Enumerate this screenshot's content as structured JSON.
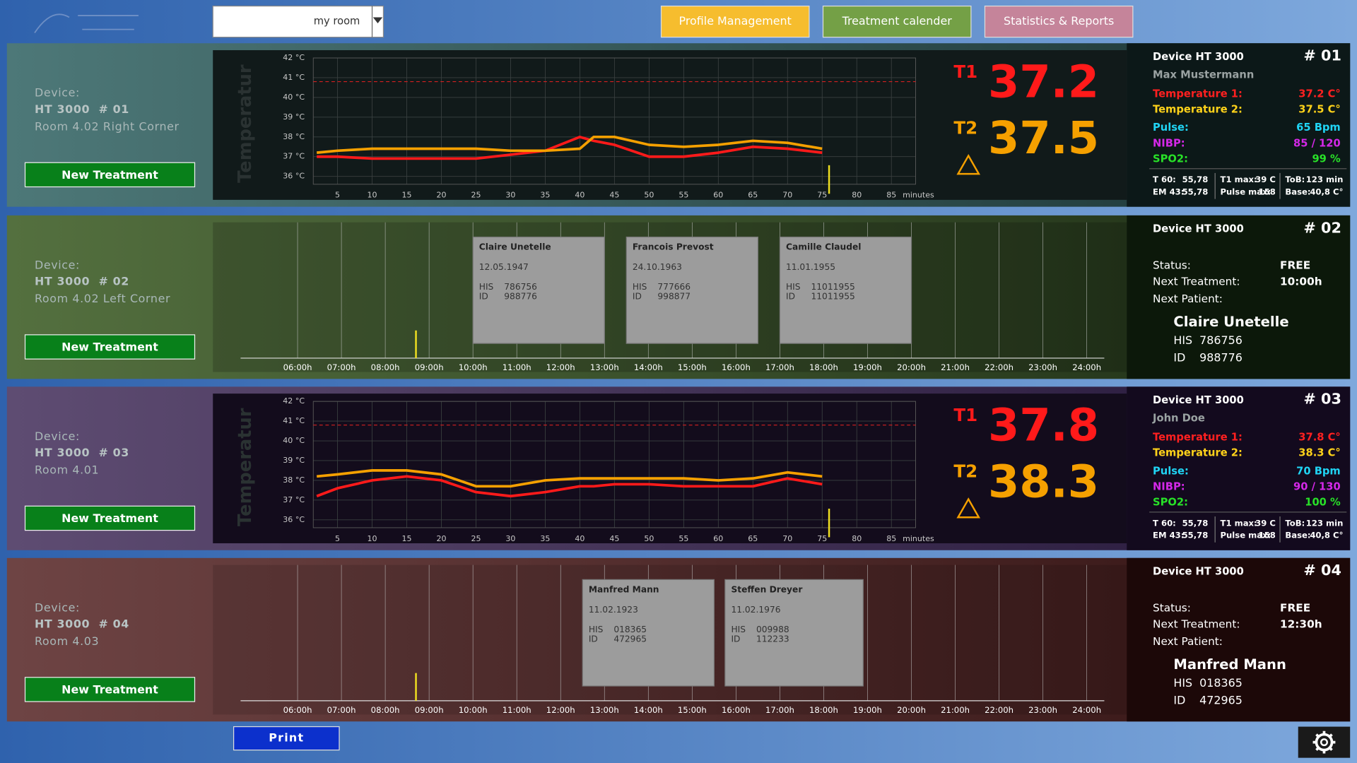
{
  "header": {
    "room": "my room",
    "buttons": [
      "Profile Management",
      "Treatment calender",
      "Statistics & Reports"
    ]
  },
  "devices": [
    {
      "label": "Device:",
      "device": "HT 3000  # 01",
      "room": "Room 4.02 Right Corner",
      "button": "New Treatment",
      "chart": {
        "type": "line",
        "ylabel": "Temperatur",
        "xlabel": "minutes",
        "xlim": [
          1.5,
          88.5
        ],
        "ylim": [
          35.6,
          42
        ],
        "xticks": [
          5,
          10,
          15,
          20,
          25,
          30,
          35,
          40,
          45,
          50,
          55,
          60,
          65,
          70,
          75,
          80,
          85
        ],
        "yticks": [
          {
            "value": 36,
            "label": "36 °C"
          },
          {
            "value": 37,
            "label": "37 °C"
          },
          {
            "value": 38,
            "label": "38 °C"
          },
          {
            "value": 39,
            "label": "39 °C"
          },
          {
            "value": 40,
            "label": "40 °C"
          },
          {
            "value": 41,
            "label": "41 °C"
          },
          {
            "value": 42,
            "label": "42 °C"
          }
        ],
        "grid": true,
        "threshold": 40.8,
        "threshold_color": "#d42020",
        "now": 76,
        "now_color": "#f0e020",
        "x": [
          2,
          5,
          10,
          15,
          20,
          25,
          30,
          35,
          40,
          42,
          45,
          50,
          55,
          60,
          65,
          70,
          75
        ],
        "series": [
          {
            "color": "#ff1a1a",
            "values": [
              37.0,
              37.0,
              36.9,
              36.9,
              36.9,
              36.9,
              37.1,
              37.3,
              38.0,
              37.8,
              37.6,
              37.0,
              37.0,
              37.2,
              37.5,
              37.4,
              37.2
            ]
          },
          {
            "color": "#f5a000",
            "values": [
              37.2,
              37.3,
              37.4,
              37.4,
              37.4,
              37.4,
              37.3,
              37.3,
              37.4,
              38.0,
              38.0,
              37.6,
              37.5,
              37.6,
              37.8,
              37.7,
              37.4
            ]
          }
        ]
      },
      "readout": {
        "t1_label": "T1",
        "t1": "37.2",
        "t2_label": "T2",
        "t2": "37.5"
      },
      "panel": {
        "title": "Device HT 3000",
        "number": "# 01",
        "patient": "Max Mustermann",
        "vitals": [
          {
            "label": "Temperature 1:",
            "value": "37.2 C°",
            "color": "#ff2020"
          },
          {
            "label": "Temperature 2:",
            "value": "37.5 C°",
            "color": "#ffd21a"
          },
          {
            "label": "Pulse:",
            "value": "65 Bpm",
            "color": "#20d4f4"
          },
          {
            "label": "NIBP:",
            "value": "85 / 120",
            "color": "#d428e8"
          },
          {
            "label": "SPO2:",
            "value": "99 %",
            "color": "#28e028"
          }
        ],
        "stats": [
          {
            "label": "T 60:",
            "value": "55,78"
          },
          {
            "label": "T1 max:",
            "value": "39 C"
          },
          {
            "label": "ToB:",
            "value": "123 min"
          },
          {
            "label": "EM 43:",
            "value": "55,78"
          },
          {
            "label": "Pulse max:",
            "value": "158"
          },
          {
            "label": "Base:",
            "value": "40,8 C°"
          }
        ]
      }
    },
    {
      "label": "Device:",
      "device": "HT 3000  # 02",
      "room": "Room 4.02 Left Corner",
      "button": "New Treatment",
      "schedule": {
        "xlim": [
          4.7,
          24.4
        ],
        "now": 8.7,
        "now_color": "#f0e020",
        "xticks": [
          {
            "value": 6,
            "label": "06:00h"
          },
          {
            "value": 7,
            "label": "07:00h"
          },
          {
            "value": 8,
            "label": "08:00h"
          },
          {
            "value": 9,
            "label": "09:00h"
          },
          {
            "value": 10,
            "label": "10:00h"
          },
          {
            "value": 11,
            "label": "11:00h"
          },
          {
            "value": 12,
            "label": "12:00h"
          },
          {
            "value": 13,
            "label": "13:00h"
          },
          {
            "value": 14,
            "label": "14:00h"
          },
          {
            "value": 15,
            "label": "15:00h"
          },
          {
            "value": 16,
            "label": "16:00h"
          },
          {
            "value": 17,
            "label": "17:00h"
          },
          {
            "value": 18,
            "label": "18:00h"
          },
          {
            "value": 19,
            "label": "19:00h"
          },
          {
            "value": 20,
            "label": "20:00h"
          },
          {
            "value": 21,
            "label": "21:00h"
          },
          {
            "value": 22,
            "label": "22:00h"
          },
          {
            "value": 23,
            "label": "23:00h"
          },
          {
            "value": 24,
            "label": "24:00h"
          }
        ],
        "cards": [
          {
            "name": "Claire Unetelle",
            "dob": "12.05.1947",
            "his_label": "HIS",
            "his": "786756",
            "id_label": "ID",
            "id": "988776",
            "start": 10,
            "end": 13
          },
          {
            "name": "Francois Prevost",
            "dob": "24.10.1963",
            "his_label": "HIS",
            "his": "777666",
            "id_label": "ID",
            "id": "998877",
            "start": 13.5,
            "end": 16.5
          },
          {
            "name": "Camille Claudel",
            "dob": "11.01.1955",
            "his_label": "HIS",
            "his": "11011955",
            "id_label": "ID",
            "id": "11011955",
            "start": 17,
            "end": 20
          }
        ]
      },
      "panel": {
        "title": "Device HT 3000",
        "number": "# 02",
        "status_label": "Status:",
        "status": "FREE",
        "next_label": "Next Treatment:",
        "next": "10:00h",
        "patient_label": "Next Patient:",
        "patient": "Claire Unetelle",
        "his_label": "HIS",
        "his": "786756",
        "id_label": "ID",
        "id": "988776"
      }
    },
    {
      "label": "Device:",
      "device": "HT 3000  # 03",
      "room": "Room 4.01",
      "button": "New Treatment",
      "chart": {
        "type": "line",
        "ylabel": "Temperatur",
        "xlabel": "minutes",
        "xlim": [
          1.5,
          88.5
        ],
        "ylim": [
          35.6,
          42
        ],
        "xticks": [
          5,
          10,
          15,
          20,
          25,
          30,
          35,
          40,
          45,
          50,
          55,
          60,
          65,
          70,
          75,
          80,
          85
        ],
        "yticks": [
          {
            "value": 36,
            "label": "36 °C"
          },
          {
            "value": 37,
            "label": "37 °C"
          },
          {
            "value": 38,
            "label": "38 °C"
          },
          {
            "value": 39,
            "label": "39 °C"
          },
          {
            "value": 40,
            "label": "40 °C"
          },
          {
            "value": 41,
            "label": "41 °C"
          },
          {
            "value": 42,
            "label": "42 °C"
          }
        ],
        "grid": true,
        "threshold": 40.8,
        "threshold_color": "#d42020",
        "now": 76,
        "now_color": "#f0e020",
        "x": [
          2,
          5,
          10,
          15,
          20,
          25,
          30,
          35,
          40,
          42,
          45,
          50,
          55,
          60,
          65,
          70,
          75
        ],
        "series": [
          {
            "color": "#ff1a1a",
            "values": [
              37.2,
              37.6,
              38.0,
              38.2,
              38.0,
              37.4,
              37.2,
              37.4,
              37.7,
              37.7,
              37.8,
              37.8,
              37.7,
              37.7,
              37.7,
              38.1,
              37.8
            ]
          },
          {
            "color": "#f5a000",
            "values": [
              38.2,
              38.3,
              38.5,
              38.5,
              38.3,
              37.7,
              37.7,
              38.0,
              38.1,
              38.1,
              38.1,
              38.1,
              38.1,
              38.0,
              38.1,
              38.4,
              38.2
            ]
          }
        ]
      },
      "readout": {
        "t1_label": "T1",
        "t1": "37.8",
        "t2_label": "T2",
        "t2": "38.3"
      },
      "panel": {
        "title": "Device HT 3000",
        "number": "# 03",
        "patient": "John Doe",
        "vitals": [
          {
            "label": "Temperature 1:",
            "value": "37.8 C°",
            "color": "#ff2020"
          },
          {
            "label": "Temperature 2:",
            "value": "38.3 C°",
            "color": "#ffd21a"
          },
          {
            "label": "Pulse:",
            "value": "70 Bpm",
            "color": "#20d4f4"
          },
          {
            "label": "NIBP:",
            "value": "90 / 130",
            "color": "#d428e8"
          },
          {
            "label": "SPO2:",
            "value": "100 %",
            "color": "#28e028"
          }
        ],
        "stats": [
          {
            "label": "T 60:",
            "value": "55,78"
          },
          {
            "label": "T1 max:",
            "value": "39 C"
          },
          {
            "label": "ToB:",
            "value": "123 min"
          },
          {
            "label": "EM 43:",
            "value": "55,78"
          },
          {
            "label": "Pulse max:",
            "value": "158"
          },
          {
            "label": "Base:",
            "value": "40,8 C°"
          }
        ]
      }
    },
    {
      "label": "Device:",
      "device": "HT 3000  # 04",
      "room": "Room 4.03",
      "button": "New Treatment",
      "schedule": {
        "xlim": [
          4.7,
          24.4
        ],
        "now": 8.7,
        "now_color": "#f0e020",
        "xticks": [
          {
            "value": 6,
            "label": "06:00h"
          },
          {
            "value": 7,
            "label": "07:00h"
          },
          {
            "value": 8,
            "label": "08:00h"
          },
          {
            "value": 9,
            "label": "09:00h"
          },
          {
            "value": 10,
            "label": "10:00h"
          },
          {
            "value": 11,
            "label": "11:00h"
          },
          {
            "value": 12,
            "label": "12:00h"
          },
          {
            "value": 13,
            "label": "13:00h"
          },
          {
            "value": 14,
            "label": "14:00h"
          },
          {
            "value": 15,
            "label": "15:00h"
          },
          {
            "value": 16,
            "label": "16:00h"
          },
          {
            "value": 17,
            "label": "17:00h"
          },
          {
            "value": 18,
            "label": "18:00h"
          },
          {
            "value": 19,
            "label": "19:00h"
          },
          {
            "value": 20,
            "label": "20:00h"
          },
          {
            "value": 21,
            "label": "21:00h"
          },
          {
            "value": 22,
            "label": "22:00h"
          },
          {
            "value": 23,
            "label": "23:00h"
          },
          {
            "value": 24,
            "label": "24:00h"
          }
        ],
        "cards": [
          {
            "name": "Manfred Mann",
            "dob": "11.02.1923",
            "his_label": "HIS",
            "his": "018365",
            "id_label": "ID",
            "id": "472965",
            "start": 12.5,
            "end": 15.5
          },
          {
            "name": "Steffen Dreyer",
            "dob": "11.02.1976",
            "his_label": "HIS",
            "his": "009988",
            "id_label": "ID",
            "id": "112233",
            "start": 15.75,
            "end": 18.9
          }
        ]
      },
      "panel": {
        "title": "Device HT 3000",
        "number": "# 04",
        "status_label": "Status:",
        "status": "FREE",
        "next_label": "Next Treatment:",
        "next": "12:30h",
        "patient_label": "Next Patient:",
        "patient": "Manfred Mann",
        "his_label": "HIS",
        "his": "018365",
        "id_label": "ID",
        "id": "472965"
      }
    }
  ],
  "print": "Print"
}
